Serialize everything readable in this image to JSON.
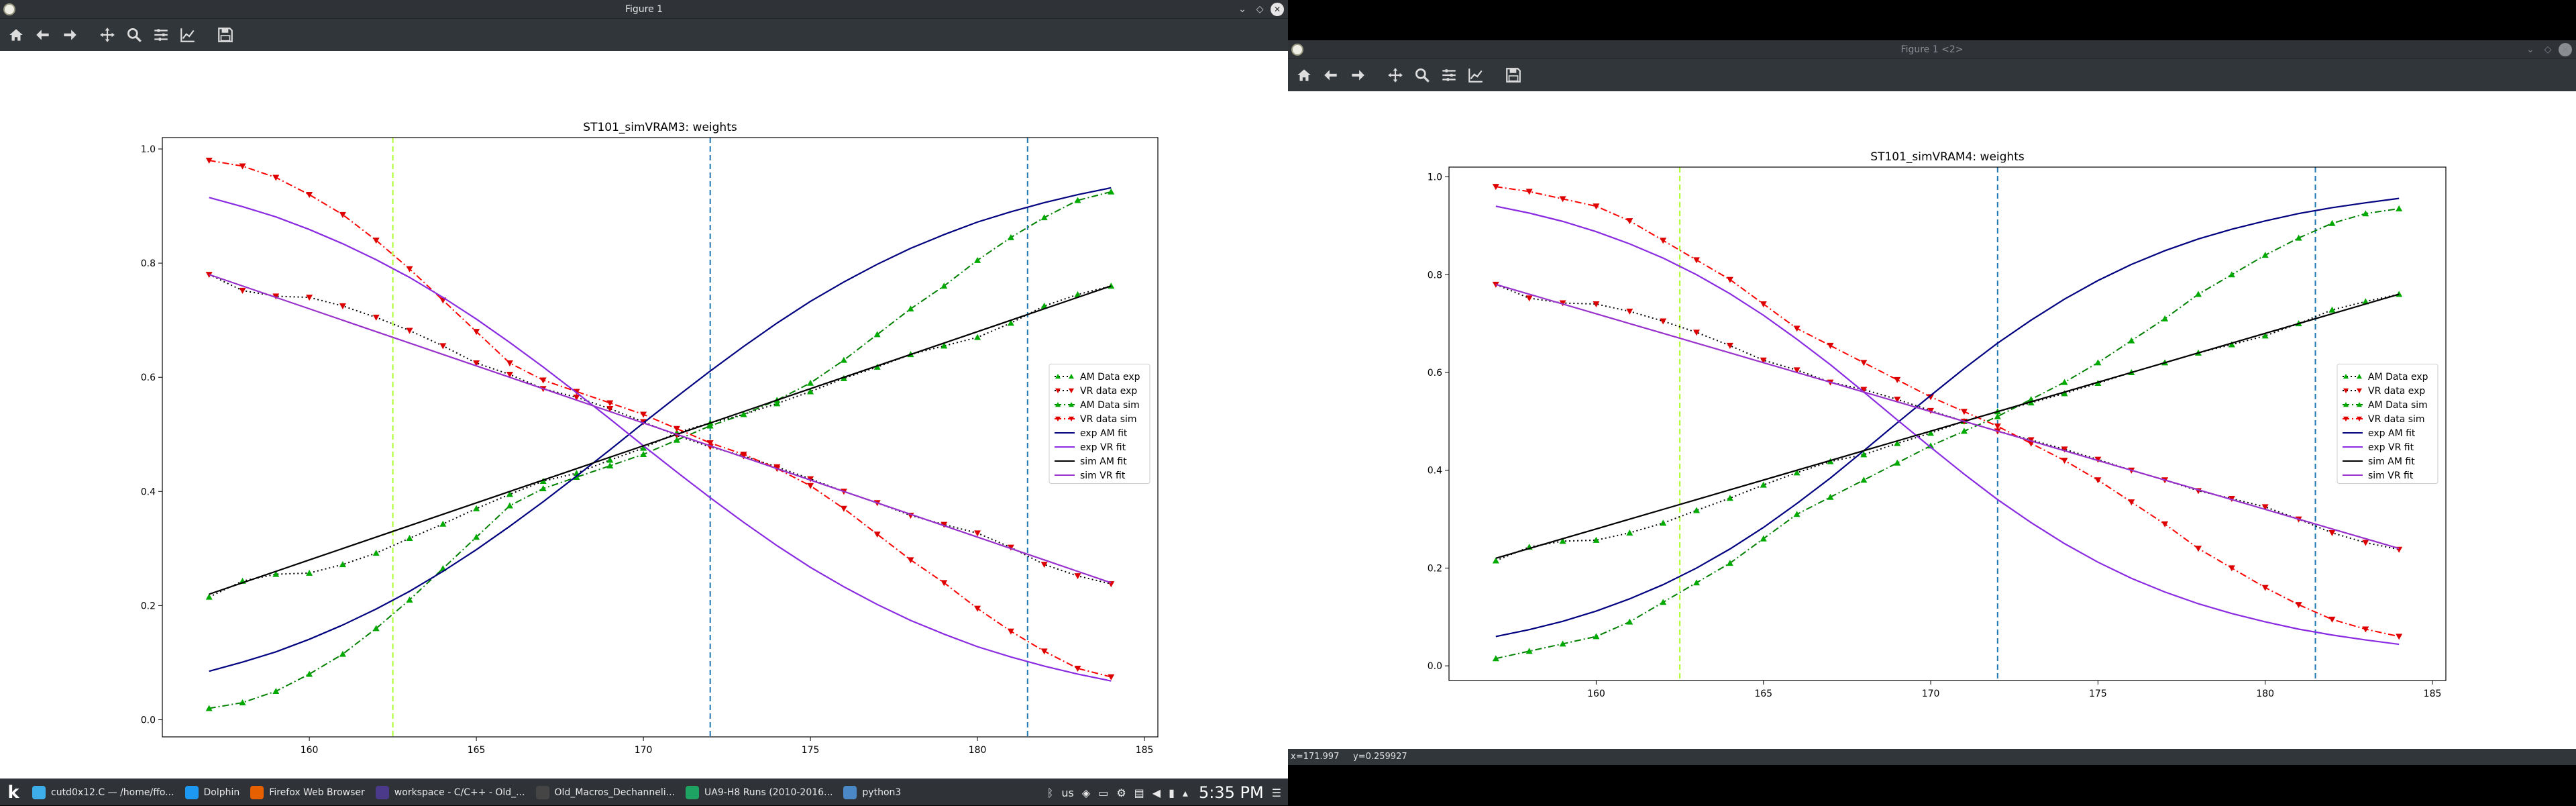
{
  "windows": [
    {
      "title": "Figure 1",
      "active": true
    },
    {
      "title": "Figure 1 <2>",
      "active": false
    }
  ],
  "window_controls": {
    "minimize": "⌄",
    "maximize": "◇",
    "close": "✕"
  },
  "toolbar_icons": [
    "home-icon",
    "back-arrow-icon",
    "forward-arrow-icon",
    "pan-icon",
    "zoom-icon",
    "subplots-icon",
    "axes-edit-icon",
    "save-icon"
  ],
  "status": {
    "second": "x=171.997     y=0.259927"
  },
  "taskbar": {
    "items": [
      {
        "label": "cutd0x12.C — /home/ffo...",
        "icon": "kate-icon",
        "color": "#3daee9"
      },
      {
        "label": "Dolphin",
        "icon": "folder-icon",
        "color": "#1d99f3"
      },
      {
        "label": "Firefox Web Browser",
        "icon": "firefox-icon",
        "color": "#e66000"
      },
      {
        "label": "workspace - C/C++ - Old_...",
        "icon": "eclipse-icon",
        "color": "#4b3a8a"
      },
      {
        "label": "Old_Macros_Dechanneli...",
        "icon": "terminal-icon",
        "color": "#454545"
      },
      {
        "label": "UA9-H8 Runs (2010-2016...",
        "icon": "spreadsheet-icon",
        "color": "#1ea362"
      },
      {
        "label": "python3",
        "icon": "python-icon",
        "color": "#4a88c7"
      }
    ],
    "tray": {
      "keyboard": "us",
      "clock": "5:35 PM"
    },
    "colors": {
      "bg": "#2f3237"
    }
  },
  "chart_data": [
    {
      "type": "line",
      "title": "ST101_simVRAM3: weights",
      "xlabel": "",
      "ylabel": "",
      "xlim": [
        155.6,
        185.4
      ],
      "ylim": [
        -0.03,
        1.02
      ],
      "xticks": [
        160,
        165,
        170,
        175,
        180,
        185
      ],
      "yticks": [
        0.0,
        0.2,
        0.4,
        0.6,
        0.8,
        1.0
      ],
      "vlines": [
        {
          "x": 162.5,
          "color": "#adff2f"
        },
        {
          "x": 172,
          "color": "#1f77b4"
        },
        {
          "x": 181.5,
          "color": "#1f77b4"
        }
      ],
      "legend_position": "center-right",
      "grid": false,
      "x": [
        157,
        158,
        159,
        160,
        161,
        162,
        163,
        164,
        165,
        166,
        167,
        168,
        169,
        170,
        171,
        172,
        173,
        174,
        175,
        176,
        177,
        178,
        179,
        180,
        181,
        182,
        183,
        184
      ],
      "series": [
        {
          "name": "AM Data exp",
          "color": "#000000",
          "marker": "^",
          "markercolor": "#00aa00",
          "style": "dotted",
          "values": [
            0.215,
            0.243,
            0.255,
            0.257,
            0.272,
            0.292,
            0.318,
            0.343,
            0.37,
            0.395,
            0.418,
            0.432,
            0.455,
            0.476,
            0.503,
            0.52,
            0.535,
            0.554,
            0.575,
            0.598,
            0.618,
            0.64,
            0.655,
            0.67,
            0.695,
            0.725,
            0.745,
            0.76
          ]
        },
        {
          "name": "VR data exp",
          "color": "#000000",
          "marker": "v",
          "markercolor": "#dd0000",
          "style": "dotted",
          "values": [
            0.78,
            0.752,
            0.742,
            0.74,
            0.725,
            0.705,
            0.682,
            0.655,
            0.625,
            0.605,
            0.58,
            0.565,
            0.545,
            0.522,
            0.498,
            0.478,
            0.462,
            0.443,
            0.422,
            0.4,
            0.38,
            0.358,
            0.342,
            0.327,
            0.302,
            0.272,
            0.252,
            0.238
          ]
        },
        {
          "name": "AM Data sim",
          "color": "#008000",
          "marker": "^",
          "markercolor": "#00aa00",
          "style": "dashdot",
          "values": [
            0.02,
            0.03,
            0.05,
            0.08,
            0.115,
            0.16,
            0.21,
            0.265,
            0.32,
            0.375,
            0.405,
            0.425,
            0.445,
            0.465,
            0.49,
            0.515,
            0.535,
            0.56,
            0.59,
            0.63,
            0.675,
            0.72,
            0.76,
            0.805,
            0.845,
            0.88,
            0.91,
            0.925
          ]
        },
        {
          "name": "VR data sim",
          "color": "#ff0000",
          "marker": "v",
          "markercolor": "#dd0000",
          "style": "dashdot",
          "values": [
            0.98,
            0.97,
            0.95,
            0.92,
            0.885,
            0.84,
            0.79,
            0.735,
            0.68,
            0.625,
            0.595,
            0.575,
            0.555,
            0.535,
            0.51,
            0.485,
            0.465,
            0.44,
            0.41,
            0.37,
            0.325,
            0.28,
            0.24,
            0.195,
            0.155,
            0.12,
            0.09,
            0.075
          ]
        },
        {
          "name": "exp AM fit",
          "color": "#000080",
          "style": "solid",
          "values": [
            0.085,
            0.101,
            0.119,
            0.141,
            0.166,
            0.194,
            0.225,
            0.26,
            0.298,
            0.339,
            0.382,
            0.427,
            0.473,
            0.52,
            0.566,
            0.611,
            0.654,
            0.695,
            0.733,
            0.767,
            0.798,
            0.826,
            0.85,
            0.872,
            0.89,
            0.906,
            0.92,
            0.932
          ]
        },
        {
          "name": "exp VR fit",
          "color": "#8a2be2",
          "style": "solid",
          "values": [
            0.915,
            0.899,
            0.881,
            0.859,
            0.834,
            0.806,
            0.775,
            0.74,
            0.702,
            0.661,
            0.618,
            0.573,
            0.527,
            0.48,
            0.434,
            0.389,
            0.346,
            0.305,
            0.267,
            0.233,
            0.202,
            0.174,
            0.15,
            0.128,
            0.11,
            0.094,
            0.08,
            0.068
          ]
        },
        {
          "name": "sim AM fit",
          "color": "#000000",
          "style": "solid",
          "values": [
            0.22,
            0.24,
            0.26,
            0.28,
            0.3,
            0.32,
            0.34,
            0.36,
            0.38,
            0.4,
            0.42,
            0.44,
            0.46,
            0.48,
            0.5,
            0.52,
            0.54,
            0.56,
            0.58,
            0.6,
            0.62,
            0.64,
            0.66,
            0.68,
            0.7,
            0.72,
            0.74,
            0.76
          ]
        },
        {
          "name": "sim VR fit",
          "color": "#9932cc",
          "style": "solid",
          "values": [
            0.78,
            0.76,
            0.74,
            0.72,
            0.7,
            0.68,
            0.66,
            0.64,
            0.62,
            0.6,
            0.58,
            0.56,
            0.54,
            0.52,
            0.5,
            0.48,
            0.46,
            0.44,
            0.42,
            0.4,
            0.38,
            0.36,
            0.34,
            0.32,
            0.3,
            0.28,
            0.26,
            0.24
          ]
        }
      ]
    },
    {
      "type": "line",
      "title": "ST101_simVRAM4: weights",
      "xlabel": "",
      "ylabel": "",
      "xlim": [
        155.6,
        185.4
      ],
      "ylim": [
        -0.03,
        1.02
      ],
      "xticks": [
        160,
        165,
        170,
        175,
        180,
        185
      ],
      "yticks": [
        0.0,
        0.2,
        0.4,
        0.6,
        0.8,
        1.0
      ],
      "vlines": [
        {
          "x": 162.5,
          "color": "#adff2f"
        },
        {
          "x": 172,
          "color": "#1f77b4"
        },
        {
          "x": 181.5,
          "color": "#1f77b4"
        }
      ],
      "legend_position": "center-right",
      "grid": false,
      "x": [
        157,
        158,
        159,
        160,
        161,
        162,
        163,
        164,
        165,
        166,
        167,
        168,
        169,
        170,
        171,
        172,
        173,
        174,
        175,
        176,
        177,
        178,
        179,
        180,
        181,
        182,
        183,
        184
      ],
      "series": [
        {
          "name": "AM Data exp",
          "color": "#000000",
          "marker": "^",
          "markercolor": "#00aa00",
          "style": "dotted",
          "values": [
            0.215,
            0.243,
            0.255,
            0.257,
            0.272,
            0.292,
            0.318,
            0.343,
            0.37,
            0.395,
            0.418,
            0.432,
            0.455,
            0.476,
            0.5,
            0.52,
            0.538,
            0.557,
            0.578,
            0.6,
            0.62,
            0.64,
            0.657,
            0.675,
            0.7,
            0.728,
            0.745,
            0.76
          ]
        },
        {
          "name": "VR data exp",
          "color": "#000000",
          "marker": "v",
          "markercolor": "#dd0000",
          "style": "dotted",
          "values": [
            0.78,
            0.752,
            0.742,
            0.74,
            0.725,
            0.705,
            0.682,
            0.655,
            0.625,
            0.605,
            0.58,
            0.565,
            0.545,
            0.522,
            0.5,
            0.48,
            0.462,
            0.443,
            0.422,
            0.4,
            0.38,
            0.358,
            0.342,
            0.325,
            0.3,
            0.272,
            0.252,
            0.238
          ]
        },
        {
          "name": "AM Data sim",
          "color": "#008000",
          "marker": "^",
          "markercolor": "#00aa00",
          "style": "dashdot",
          "values": [
            0.015,
            0.03,
            0.045,
            0.06,
            0.09,
            0.13,
            0.17,
            0.21,
            0.26,
            0.31,
            0.345,
            0.38,
            0.415,
            0.45,
            0.48,
            0.51,
            0.545,
            0.58,
            0.62,
            0.665,
            0.71,
            0.76,
            0.8,
            0.84,
            0.875,
            0.905,
            0.925,
            0.935
          ]
        },
        {
          "name": "VR data sim",
          "color": "#ff0000",
          "marker": "v",
          "markercolor": "#dd0000",
          "style": "dashdot",
          "values": [
            0.98,
            0.97,
            0.955,
            0.94,
            0.91,
            0.87,
            0.83,
            0.79,
            0.74,
            0.69,
            0.655,
            0.62,
            0.585,
            0.55,
            0.52,
            0.49,
            0.455,
            0.42,
            0.38,
            0.335,
            0.29,
            0.24,
            0.2,
            0.16,
            0.125,
            0.095,
            0.075,
            0.06
          ]
        },
        {
          "name": "exp AM fit",
          "color": "#000080",
          "style": "solid",
          "values": [
            0.06,
            0.074,
            0.091,
            0.112,
            0.137,
            0.166,
            0.2,
            0.239,
            0.283,
            0.332,
            0.384,
            0.44,
            0.497,
            0.553,
            0.608,
            0.66,
            0.707,
            0.75,
            0.788,
            0.821,
            0.849,
            0.873,
            0.893,
            0.91,
            0.925,
            0.937,
            0.947,
            0.956
          ]
        },
        {
          "name": "exp VR fit",
          "color": "#8a2be2",
          "style": "solid",
          "values": [
            0.94,
            0.926,
            0.909,
            0.888,
            0.863,
            0.834,
            0.8,
            0.761,
            0.717,
            0.668,
            0.616,
            0.56,
            0.503,
            0.447,
            0.392,
            0.34,
            0.293,
            0.25,
            0.212,
            0.179,
            0.151,
            0.127,
            0.107,
            0.09,
            0.075,
            0.063,
            0.053,
            0.044
          ]
        },
        {
          "name": "sim AM fit",
          "color": "#000000",
          "style": "solid",
          "values": [
            0.22,
            0.24,
            0.26,
            0.28,
            0.3,
            0.32,
            0.34,
            0.36,
            0.38,
            0.4,
            0.42,
            0.44,
            0.46,
            0.48,
            0.5,
            0.52,
            0.54,
            0.56,
            0.58,
            0.6,
            0.62,
            0.64,
            0.66,
            0.68,
            0.7,
            0.72,
            0.74,
            0.76
          ]
        },
        {
          "name": "sim VR fit",
          "color": "#9932cc",
          "style": "solid",
          "values": [
            0.78,
            0.76,
            0.74,
            0.72,
            0.7,
            0.68,
            0.66,
            0.64,
            0.62,
            0.6,
            0.58,
            0.56,
            0.54,
            0.52,
            0.5,
            0.48,
            0.46,
            0.44,
            0.42,
            0.4,
            0.38,
            0.36,
            0.34,
            0.32,
            0.3,
            0.28,
            0.26,
            0.24
          ]
        }
      ]
    }
  ]
}
